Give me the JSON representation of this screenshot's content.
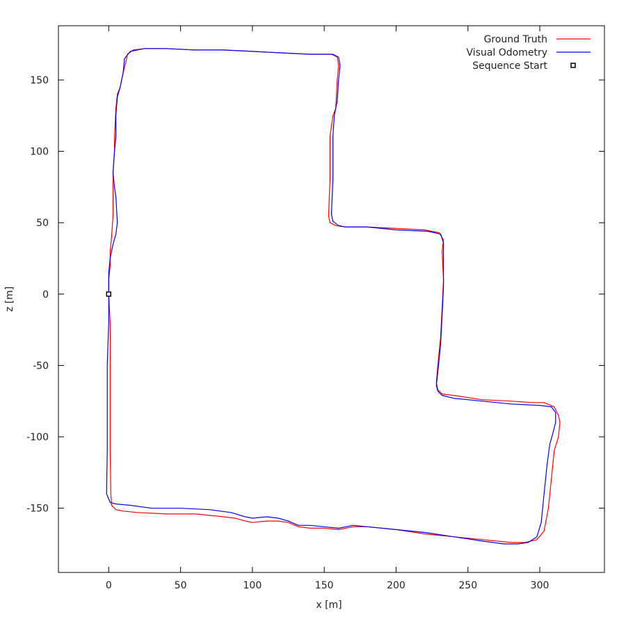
{
  "chart_data": {
    "type": "line",
    "title": "",
    "xlabel": "x [m]",
    "ylabel": "z [m]",
    "xlim": [
      -35,
      345
    ],
    "ylim": [
      -195,
      188
    ],
    "xticks": [
      0,
      50,
      100,
      150,
      200,
      250,
      300
    ],
    "yticks": [
      -150,
      -100,
      -50,
      0,
      50,
      100,
      150
    ],
    "grid": false,
    "legend_position": "top-right",
    "series": [
      {
        "name": "Ground Truth",
        "color": "#ff0000",
        "points": [
          [
            0,
            0
          ],
          [
            1,
            -20
          ],
          [
            1,
            -50
          ],
          [
            1,
            -80
          ],
          [
            1,
            -110
          ],
          [
            1.5,
            -140
          ],
          [
            2,
            -148
          ],
          [
            5,
            -151
          ],
          [
            10,
            -152
          ],
          [
            20,
            -153
          ],
          [
            40,
            -154
          ],
          [
            60,
            -154
          ],
          [
            70,
            -155
          ],
          [
            80,
            -156
          ],
          [
            88,
            -157
          ],
          [
            95,
            -159
          ],
          [
            100,
            -160
          ],
          [
            110,
            -159
          ],
          [
            118,
            -159
          ],
          [
            125,
            -160
          ],
          [
            132,
            -163
          ],
          [
            140,
            -164
          ],
          [
            150,
            -164
          ],
          [
            160,
            -165
          ],
          [
            165,
            -164
          ],
          [
            170,
            -163
          ],
          [
            180,
            -163
          ],
          [
            200,
            -165
          ],
          [
            220,
            -168
          ],
          [
            240,
            -170
          ],
          [
            260,
            -172
          ],
          [
            280,
            -174
          ],
          [
            290,
            -174
          ],
          [
            298,
            -172
          ],
          [
            303,
            -166
          ],
          [
            306,
            -150
          ],
          [
            308,
            -130
          ],
          [
            310,
            -110
          ],
          [
            313,
            -100
          ],
          [
            314,
            -90
          ],
          [
            313,
            -85
          ],
          [
            310,
            -79
          ],
          [
            303,
            -76
          ],
          [
            295,
            -76
          ],
          [
            280,
            -75
          ],
          [
            260,
            -74
          ],
          [
            240,
            -71
          ],
          [
            232,
            -70
          ],
          [
            229,
            -67
          ],
          [
            228,
            -62
          ],
          [
            229,
            -50
          ],
          [
            231,
            -30
          ],
          [
            232,
            -10
          ],
          [
            233,
            10
          ],
          [
            232,
            30
          ],
          [
            233,
            38
          ],
          [
            230,
            43
          ],
          [
            220,
            45
          ],
          [
            200,
            46
          ],
          [
            180,
            47
          ],
          [
            165,
            47
          ],
          [
            158,
            48
          ],
          [
            154,
            50
          ],
          [
            153,
            55
          ],
          [
            154,
            80
          ],
          [
            154,
            110
          ],
          [
            156,
            125
          ],
          [
            158,
            130
          ],
          [
            159,
            150
          ],
          [
            160,
            160
          ],
          [
            159,
            166
          ],
          [
            155,
            168
          ],
          [
            140,
            168
          ],
          [
            120,
            169
          ],
          [
            100,
            170
          ],
          [
            80,
            171
          ],
          [
            60,
            171
          ],
          [
            40,
            172
          ],
          [
            25,
            172
          ],
          [
            17,
            171
          ],
          [
            13,
            168
          ],
          [
            12,
            163
          ],
          [
            10,
            155
          ],
          [
            8,
            145
          ],
          [
            6,
            140
          ],
          [
            5,
            130
          ],
          [
            4,
            110
          ],
          [
            4,
            100
          ],
          [
            3,
            85
          ],
          [
            3,
            70
          ],
          [
            3,
            55
          ],
          [
            2,
            40
          ],
          [
            1,
            30
          ],
          [
            1,
            20
          ],
          [
            0,
            10
          ],
          [
            0,
            0
          ]
        ]
      },
      {
        "name": "Visual Odometry",
        "color": "#0000ff",
        "points": [
          [
            0,
            0
          ],
          [
            0,
            -20
          ],
          [
            -1,
            -50
          ],
          [
            -1,
            -80
          ],
          [
            -1,
            -110
          ],
          [
            -1.5,
            -140
          ],
          [
            1,
            -146
          ],
          [
            5,
            -147
          ],
          [
            15,
            -148
          ],
          [
            30,
            -150
          ],
          [
            50,
            -150
          ],
          [
            70,
            -151
          ],
          [
            85,
            -153
          ],
          [
            95,
            -156
          ],
          [
            100,
            -157
          ],
          [
            110,
            -156
          ],
          [
            118,
            -157
          ],
          [
            125,
            -159
          ],
          [
            132,
            -162
          ],
          [
            140,
            -162
          ],
          [
            150,
            -163
          ],
          [
            160,
            -164
          ],
          [
            165,
            -163
          ],
          [
            170,
            -162
          ],
          [
            180,
            -163
          ],
          [
            200,
            -165
          ],
          [
            220,
            -167
          ],
          [
            240,
            -170
          ],
          [
            260,
            -173
          ],
          [
            275,
            -175
          ],
          [
            285,
            -175
          ],
          [
            292,
            -174
          ],
          [
            298,
            -170
          ],
          [
            301,
            -160
          ],
          [
            303,
            -140
          ],
          [
            305,
            -120
          ],
          [
            307,
            -105
          ],
          [
            309,
            -98
          ],
          [
            311,
            -90
          ],
          [
            311,
            -83
          ],
          [
            308,
            -79
          ],
          [
            300,
            -78
          ],
          [
            280,
            -77
          ],
          [
            260,
            -75
          ],
          [
            240,
            -73
          ],
          [
            232,
            -71
          ],
          [
            229,
            -68
          ],
          [
            228,
            -64
          ],
          [
            229,
            -55
          ],
          [
            231,
            -35
          ],
          [
            232,
            -15
          ],
          [
            233,
            5
          ],
          [
            233,
            25
          ],
          [
            233,
            36
          ],
          [
            231,
            42
          ],
          [
            222,
            44
          ],
          [
            200,
            45
          ],
          [
            180,
            47
          ],
          [
            165,
            47
          ],
          [
            160,
            48
          ],
          [
            156,
            51
          ],
          [
            155,
            56
          ],
          [
            156,
            80
          ],
          [
            156,
            110
          ],
          [
            157,
            125
          ],
          [
            159,
            135
          ],
          [
            160,
            150
          ],
          [
            161,
            160
          ],
          [
            160,
            166
          ],
          [
            156,
            168
          ],
          [
            140,
            168
          ],
          [
            120,
            169
          ],
          [
            100,
            170
          ],
          [
            80,
            171
          ],
          [
            60,
            171
          ],
          [
            40,
            172
          ],
          [
            25,
            172
          ],
          [
            15,
            170
          ],
          [
            11,
            165
          ],
          [
            10,
            155
          ],
          [
            8,
            145
          ],
          [
            6,
            138
          ],
          [
            5,
            125
          ],
          [
            5,
            110
          ],
          [
            4,
            100
          ],
          [
            3,
            85
          ],
          [
            4,
            75
          ],
          [
            5,
            68
          ],
          [
            6,
            50
          ],
          [
            5,
            42
          ],
          [
            3,
            35
          ],
          [
            1,
            25
          ],
          [
            0,
            15
          ],
          [
            0,
            0
          ]
        ]
      }
    ],
    "markers": [
      {
        "name": "Sequence Start",
        "x": 0,
        "y": 0,
        "shape": "square"
      }
    ]
  }
}
